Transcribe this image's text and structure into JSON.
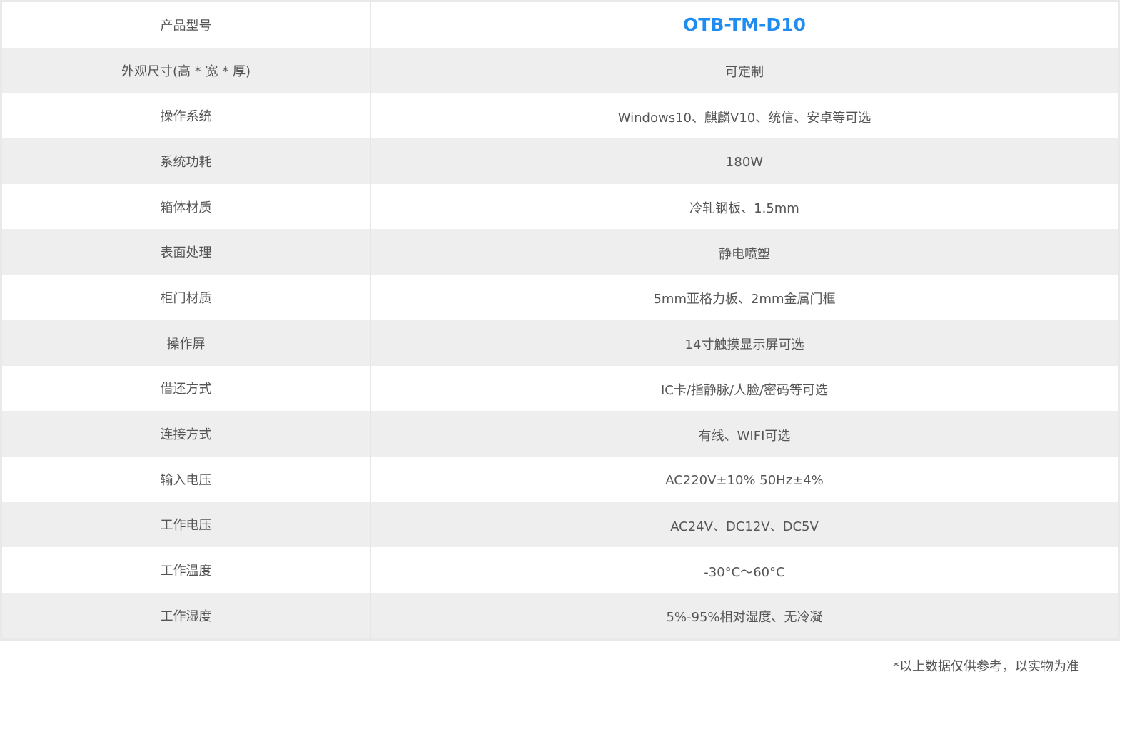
{
  "accent_color": "#1e8cf0",
  "rows": [
    {
      "label": "产品型号",
      "value": "OTB-TM-D10"
    },
    {
      "label": "外观尺寸(高 * 宽 * 厚)",
      "value": "可定制"
    },
    {
      "label": "操作系统",
      "value": "Windows10、麒麟V10、统信、安卓等可选"
    },
    {
      "label": "系统功耗",
      "value": "180W"
    },
    {
      "label": "箱体材质",
      "value": "冷轧钢板、1.5mm"
    },
    {
      "label": "表面处理",
      "value": "静电喷塑"
    },
    {
      "label": "柜门材质",
      "value": "5mm亚格力板、2mm金属门框"
    },
    {
      "label": "操作屏",
      "value": "14寸触摸显示屏可选"
    },
    {
      "label": "借还方式",
      "value": "IC卡/指静脉/人脸/密码等可选"
    },
    {
      "label": "连接方式",
      "value": "有线、WIFI可选"
    },
    {
      "label": "输入电压",
      "value": "AC220V±10%  50Hz±4%"
    },
    {
      "label": "工作电压",
      "value": "AC24V、DC12V、DC5V"
    },
    {
      "label": "工作温度",
      "value": "-30°C～60°C"
    },
    {
      "label": "工作湿度",
      "value": "5%-95%相对湿度、无冷凝"
    }
  ],
  "footnote": "*以上数据仅供参考，以实物为准"
}
